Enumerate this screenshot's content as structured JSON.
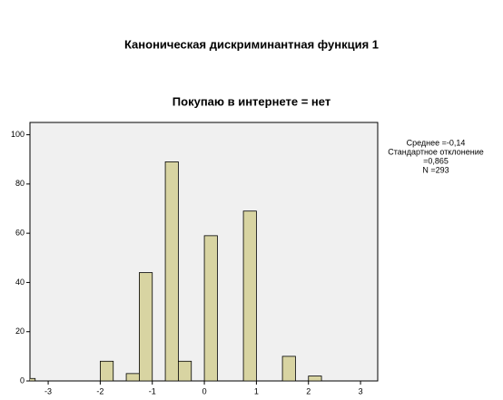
{
  "chart_data": {
    "type": "histogram",
    "title": "Каноническая дискриминантная функция 1",
    "subtitle": "Покупаю в интернете = нет",
    "bins": [
      -3.5,
      -3.25,
      -3,
      -2.75,
      -2.5,
      -2.25,
      -2,
      -1.75,
      -1.5,
      -1.25,
      -1,
      -0.75,
      -0.5,
      -0.25,
      0,
      0.25,
      0.5,
      0.75,
      1,
      1.25,
      1.5,
      1.75,
      2,
      2.25
    ],
    "values": [
      1,
      0,
      0,
      0,
      0,
      0,
      8,
      0,
      3,
      44,
      0,
      89,
      8,
      0,
      59,
      0,
      0,
      69,
      0,
      0,
      10,
      0,
      2
    ],
    "color": "#d8d4a2",
    "xlim": [
      -3.35,
      3.33
    ],
    "xticks": [
      -3,
      -2,
      -1,
      0,
      1,
      2,
      3
    ],
    "ylim": [
      0,
      105
    ],
    "yticks": [
      0,
      20,
      40,
      60,
      80,
      100
    ],
    "stats": [
      "Среднее =-0,14",
      "Стандартное отклонение",
      "=0,865",
      "N =293"
    ]
  }
}
